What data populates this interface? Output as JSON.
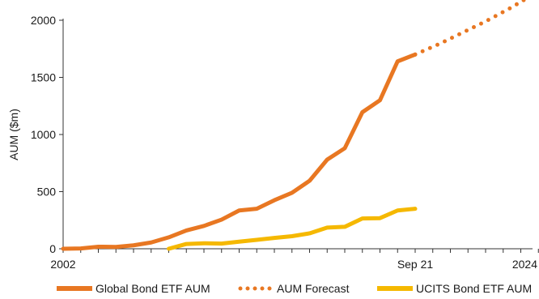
{
  "chart_data": {
    "type": "line",
    "ylabel": "AUM ($m)",
    "xlabel": "",
    "x_tick_labels": [
      "2002",
      "Sep 21",
      "2024"
    ],
    "y_ticks": [
      0,
      500,
      1000,
      1500,
      2000
    ],
    "ylim": [
      0,
      2000
    ],
    "grid": false,
    "legend_position": "bottom",
    "x": [
      "2002",
      "2002.75",
      "2003.5",
      "2004.25",
      "2005",
      "2005.75",
      "2006.5",
      "2007.25",
      "2008",
      "2008.75",
      "2009.5",
      "2010.25",
      "2011",
      "2011.75",
      "2012.5",
      "2013.25",
      "2014",
      "2014.75",
      "2015.5",
      "2016.25",
      "2017",
      "2017.75",
      "2018.5",
      "2019.25",
      "2020",
      "2020.75",
      "2021.5",
      "2022.25",
      "2023",
      "2023.75",
      "2024"
    ],
    "series": [
      {
        "name": "Global Bond ETF AUM",
        "color": "#e87722",
        "style": "solid",
        "points": [
          [
            2002,
            0
          ],
          [
            2002.75,
            3
          ],
          [
            2003.5,
            18
          ],
          [
            2004.25,
            16
          ],
          [
            2005,
            30
          ],
          [
            2005.75,
            55
          ],
          [
            2006.5,
            100
          ],
          [
            2007.25,
            160
          ],
          [
            2008,
            200
          ],
          [
            2008.75,
            255
          ],
          [
            2009.5,
            335
          ],
          [
            2010.25,
            350
          ],
          [
            2011,
            425
          ],
          [
            2011.75,
            490
          ],
          [
            2012.5,
            595
          ],
          [
            2013.25,
            780
          ],
          [
            2014,
            880
          ],
          [
            2014.75,
            1195
          ],
          [
            2015.5,
            1300
          ],
          [
            2016.25,
            1640
          ],
          [
            2017,
            1700
          ]
        ]
      },
      {
        "name": "AUM Forecast",
        "color": "#e87722",
        "style": "dotted",
        "points": [
          [
            2017,
            1700
          ],
          [
            2018,
            1790
          ],
          [
            2019,
            1890
          ],
          [
            2020,
            1990
          ],
          [
            2021,
            2100
          ],
          [
            2021.9,
            2210
          ]
        ]
      },
      {
        "name": "UCITS Bond ETF AUM",
        "color": "#f5b800",
        "style": "solid",
        "points": [
          [
            2006.5,
            0
          ],
          [
            2007.25,
            42
          ],
          [
            2008,
            48
          ],
          [
            2008.75,
            45
          ],
          [
            2009.5,
            62
          ],
          [
            2010.25,
            78
          ],
          [
            2011,
            95
          ],
          [
            2011.75,
            110
          ],
          [
            2012.5,
            135
          ],
          [
            2013.25,
            185
          ],
          [
            2014,
            192
          ],
          [
            2014.75,
            265
          ],
          [
            2015.5,
            268
          ],
          [
            2016.25,
            335
          ],
          [
            2017,
            350
          ]
        ]
      }
    ]
  }
}
